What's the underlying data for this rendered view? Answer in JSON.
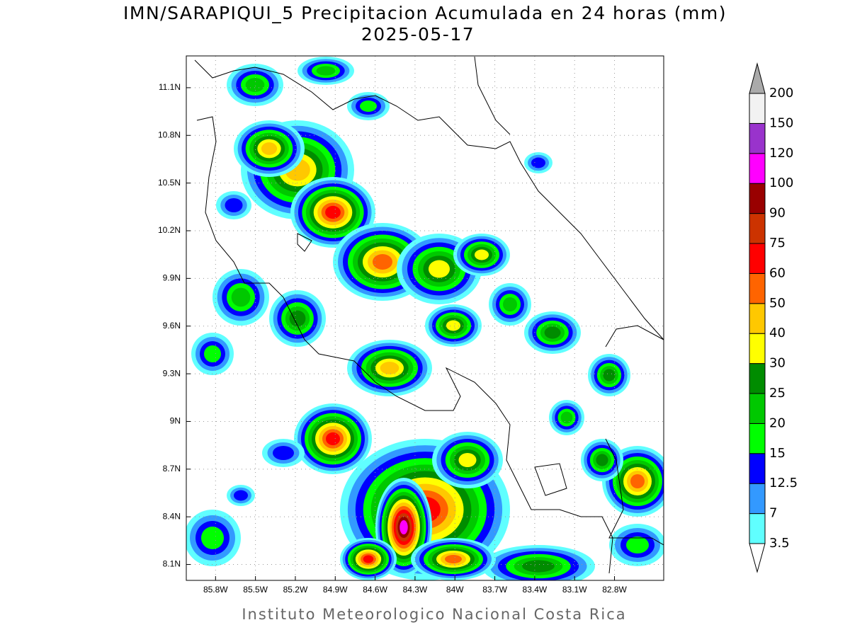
{
  "header": {
    "title": "IMN/SARAPIQUI_5 Precipitacion Acumulada en 24 horas (mm)",
    "date": "2025-05-17"
  },
  "map": {
    "xlim": [
      -86.02,
      -82.43
    ],
    "ylim": [
      8.0,
      11.3
    ],
    "grid": true,
    "xticks": [
      {
        "value": -85.8,
        "label": "85.8W"
      },
      {
        "value": -85.5,
        "label": "85.5W"
      },
      {
        "value": -85.2,
        "label": "85.2W"
      },
      {
        "value": -84.9,
        "label": "84.9W"
      },
      {
        "value": -84.6,
        "label": "84.6W"
      },
      {
        "value": -84.3,
        "label": "84.3W"
      },
      {
        "value": -84.0,
        "label": "84W"
      },
      {
        "value": -83.7,
        "label": "83.7W"
      },
      {
        "value": -83.4,
        "label": "83.4W"
      },
      {
        "value": -83.1,
        "label": "83.1W"
      },
      {
        "value": -82.8,
        "label": "82.8W"
      }
    ],
    "yticks": [
      {
        "value": 8.1,
        "label": "8.1N"
      },
      {
        "value": 8.4,
        "label": "8.4N"
      },
      {
        "value": 8.7,
        "label": "8.7N"
      },
      {
        "value": 9.0,
        "label": "9N"
      },
      {
        "value": 9.3,
        "label": "9.3N"
      },
      {
        "value": 9.6,
        "label": "9.6N"
      },
      {
        "value": 9.9,
        "label": "9.9N"
      },
      {
        "value": 10.2,
        "label": "10.2N"
      },
      {
        "value": 10.5,
        "label": "10.5N"
      },
      {
        "value": 10.8,
        "label": "10.8N"
      },
      {
        "value": 11.1,
        "label": "11.1N"
      }
    ]
  },
  "colorbar": {
    "levels": [
      3.5,
      7,
      12.5,
      15,
      20,
      25,
      30,
      40,
      50,
      60,
      75,
      90,
      100,
      120,
      150,
      200
    ],
    "colors": [
      "#ffffff",
      "#60ffff",
      "#3399ff",
      "#0000ff",
      "#00ff00",
      "#00c800",
      "#008c00",
      "#ffff00",
      "#ffc800",
      "#ff6400",
      "#ff0000",
      "#cc3300",
      "#990000",
      "#ff00ff",
      "#9933cc",
      "#f2f2f2",
      "#aaaaaa"
    ]
  },
  "footer": "Instituto Meteorologico Nacional Costa Rica"
}
